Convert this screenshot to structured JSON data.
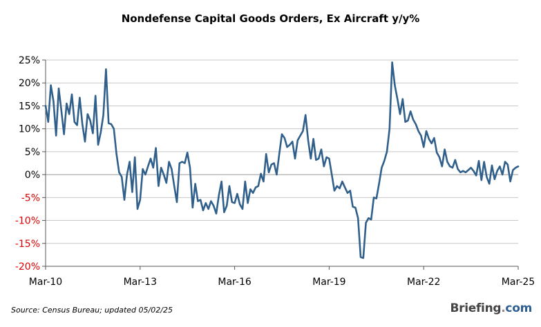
{
  "chart_data": {
    "type": "line",
    "title": "Nondefense Capital Goods Orders, Ex Aircraft y/y%",
    "xlabel": "",
    "ylabel": "",
    "ylim": [
      -20,
      25
    ],
    "yticks": [
      "25%",
      "20%",
      "15%",
      "10%",
      "5%",
      "0%",
      "-5%",
      "-10%",
      "-15%",
      "-20%"
    ],
    "ytick_values": [
      25,
      20,
      15,
      10,
      5,
      0,
      -5,
      -10,
      -15,
      -20
    ],
    "xticks": [
      "Mar-10",
      "Mar-13",
      "Mar-16",
      "Mar-19",
      "Mar-22",
      "Mar-25"
    ],
    "xtick_values": [
      "2010-03",
      "2013-03",
      "2016-03",
      "2019-03",
      "2022-03",
      "2025-03"
    ],
    "xlim": [
      "2010-03",
      "2025-03"
    ],
    "grid": true,
    "colors": {
      "line": "#2f5f8a",
      "negative_tick": "#e00000",
      "positive_tick": "#000000",
      "grid": "#c8c8c8"
    },
    "series": [
      {
        "values": [
          [
            "2010-03",
            15
          ],
          [
            "2010-04",
            11.5
          ],
          [
            "2010-05",
            19.5
          ],
          [
            "2010-06",
            16
          ],
          [
            "2010-07",
            8.5
          ],
          [
            "2010-08",
            18.8
          ],
          [
            "2010-09",
            14
          ],
          [
            "2010-10",
            8.8
          ],
          [
            "2010-11",
            15.5
          ],
          [
            "2010-12",
            13.2
          ],
          [
            "2011-01",
            17.5
          ],
          [
            "2011-02",
            11.5
          ],
          [
            "2011-03",
            10.8
          ],
          [
            "2011-04",
            16.8
          ],
          [
            "2011-05",
            11
          ],
          [
            "2011-06",
            7.2
          ],
          [
            "2011-07",
            13.2
          ],
          [
            "2011-08",
            11.8
          ],
          [
            "2011-09",
            9
          ],
          [
            "2011-10",
            17.2
          ],
          [
            "2011-11",
            6.5
          ],
          [
            "2011-12",
            9.2
          ],
          [
            "2012-01",
            13
          ],
          [
            "2012-02",
            23
          ],
          [
            "2012-03",
            11.2
          ],
          [
            "2012-04",
            11
          ],
          [
            "2012-05",
            10
          ],
          [
            "2012-06",
            4.5
          ],
          [
            "2012-07",
            0.5
          ],
          [
            "2012-08",
            -0.5
          ],
          [
            "2012-09",
            -5.5
          ],
          [
            "2012-10",
            0
          ],
          [
            "2012-11",
            2.8
          ],
          [
            "2012-12",
            -3.8
          ],
          [
            "2013-01",
            3.8
          ],
          [
            "2013-02",
            -7.5
          ],
          [
            "2013-03",
            -5.5
          ],
          [
            "2013-04",
            1.2
          ],
          [
            "2013-05",
            0
          ],
          [
            "2013-06",
            1.8
          ],
          [
            "2013-07",
            3.5
          ],
          [
            "2013-08",
            1.5
          ],
          [
            "2013-09",
            5.8
          ],
          [
            "2013-10",
            -2.5
          ],
          [
            "2013-11",
            1.5
          ],
          [
            "2013-12",
            0
          ],
          [
            "2014-01",
            -1.8
          ],
          [
            "2014-02",
            2.8
          ],
          [
            "2014-03",
            1.2
          ],
          [
            "2014-04",
            -2.5
          ],
          [
            "2014-05",
            -6
          ],
          [
            "2014-06",
            2.5
          ],
          [
            "2014-07",
            2.8
          ],
          [
            "2014-08",
            2.5
          ],
          [
            "2014-09",
            4.8
          ],
          [
            "2014-10",
            1.5
          ],
          [
            "2014-11",
            -7.2
          ],
          [
            "2014-12",
            -2
          ],
          [
            "2015-01",
            -5.8
          ],
          [
            "2015-02",
            -5.5
          ],
          [
            "2015-03",
            -7.8
          ],
          [
            "2015-04",
            -6.2
          ],
          [
            "2015-05",
            -7.5
          ],
          [
            "2015-06",
            -5.8
          ],
          [
            "2015-07",
            -6.8
          ],
          [
            "2015-08",
            -8.5
          ],
          [
            "2015-09",
            -4.5
          ],
          [
            "2015-10",
            -1.5
          ],
          [
            "2015-11",
            -8.2
          ],
          [
            "2015-12",
            -6.8
          ],
          [
            "2016-01",
            -2.5
          ],
          [
            "2016-02",
            -6
          ],
          [
            "2016-03",
            -6.2
          ],
          [
            "2016-04",
            -4.2
          ],
          [
            "2016-05",
            -6.5
          ],
          [
            "2016-06",
            -7.5
          ],
          [
            "2016-07",
            -1.5
          ],
          [
            "2016-08",
            -6.2
          ],
          [
            "2016-09",
            -3.2
          ],
          [
            "2016-10",
            -4
          ],
          [
            "2016-11",
            -2.8
          ],
          [
            "2016-12",
            -2.5
          ],
          [
            "2017-01",
            0.2
          ],
          [
            "2017-02",
            -1.5
          ],
          [
            "2017-03",
            4.5
          ],
          [
            "2017-04",
            0.5
          ],
          [
            "2017-05",
            2.2
          ],
          [
            "2017-06",
            2.5
          ],
          [
            "2017-07",
            0
          ],
          [
            "2017-08",
            4.5
          ],
          [
            "2017-09",
            8.8
          ],
          [
            "2017-10",
            8
          ],
          [
            "2017-11",
            6
          ],
          [
            "2017-12",
            6.5
          ],
          [
            "2018-01",
            7.2
          ],
          [
            "2018-02",
            3.5
          ],
          [
            "2018-03",
            7.5
          ],
          [
            "2018-04",
            8.5
          ],
          [
            "2018-05",
            9.5
          ],
          [
            "2018-06",
            13
          ],
          [
            "2018-07",
            7.5
          ],
          [
            "2018-08",
            3.5
          ],
          [
            "2018-09",
            7.8
          ],
          [
            "2018-10",
            3.2
          ],
          [
            "2018-11",
            3.5
          ],
          [
            "2018-12",
            5.5
          ],
          [
            "2019-01",
            1.8
          ],
          [
            "2019-02",
            3.8
          ],
          [
            "2019-03",
            3.5
          ],
          [
            "2019-04",
            0
          ],
          [
            "2019-05",
            -3.5
          ],
          [
            "2019-06",
            -2.5
          ],
          [
            "2019-07",
            -3
          ],
          [
            "2019-08",
            -1.5
          ],
          [
            "2019-09",
            -2.8
          ],
          [
            "2019-10",
            -4
          ],
          [
            "2019-11",
            -3.5
          ],
          [
            "2019-12",
            -7
          ],
          [
            "2020-01",
            -7.2
          ],
          [
            "2020-02",
            -9.5
          ],
          [
            "2020-03",
            -18
          ],
          [
            "2020-04",
            -18.2
          ],
          [
            "2020-05",
            -10.5
          ],
          [
            "2020-06",
            -9.5
          ],
          [
            "2020-07",
            -9.8
          ],
          [
            "2020-08",
            -5
          ],
          [
            "2020-09",
            -5.2
          ],
          [
            "2020-10",
            -2
          ],
          [
            "2020-11",
            1.5
          ],
          [
            "2020-12",
            3
          ],
          [
            "2021-01",
            5
          ],
          [
            "2021-02",
            10
          ],
          [
            "2021-03",
            24.5
          ],
          [
            "2021-04",
            19.5
          ],
          [
            "2021-05",
            16.5
          ],
          [
            "2021-06",
            13.2
          ],
          [
            "2021-07",
            16.5
          ],
          [
            "2021-08",
            11.5
          ],
          [
            "2021-09",
            11.8
          ],
          [
            "2021-10",
            13.8
          ],
          [
            "2021-11",
            12
          ],
          [
            "2021-12",
            11
          ],
          [
            "2022-01",
            9.5
          ],
          [
            "2022-02",
            8.5
          ],
          [
            "2022-03",
            6
          ],
          [
            "2022-04",
            9.5
          ],
          [
            "2022-05",
            7.8
          ],
          [
            "2022-06",
            6.8
          ],
          [
            "2022-07",
            8
          ],
          [
            "2022-08",
            4.8
          ],
          [
            "2022-09",
            3.8
          ],
          [
            "2022-10",
            1.8
          ],
          [
            "2022-11",
            5.5
          ],
          [
            "2022-12",
            2.8
          ],
          [
            "2023-01",
            1.8
          ],
          [
            "2023-02",
            1.5
          ],
          [
            "2023-03",
            3.2
          ],
          [
            "2023-04",
            1.2
          ],
          [
            "2023-05",
            0.5
          ],
          [
            "2023-06",
            0.8
          ],
          [
            "2023-07",
            0.5
          ],
          [
            "2023-08",
            1
          ],
          [
            "2023-09",
            1.5
          ],
          [
            "2023-10",
            0.8
          ],
          [
            "2023-11",
            -0.2
          ],
          [
            "2023-12",
            3
          ],
          [
            "2024-01",
            -1.2
          ],
          [
            "2024-02",
            2.8
          ],
          [
            "2024-03",
            -0.5
          ],
          [
            "2024-04",
            -2
          ],
          [
            "2024-05",
            2
          ],
          [
            "2024-06",
            -1
          ],
          [
            "2024-07",
            0.8
          ],
          [
            "2024-08",
            1.8
          ],
          [
            "2024-09",
            0
          ],
          [
            "2024-10",
            2.8
          ],
          [
            "2024-11",
            2.2
          ],
          [
            "2024-12",
            -1.5
          ],
          [
            "2025-01",
            1
          ],
          [
            "2025-02",
            1.5
          ],
          [
            "2025-03",
            1.8
          ]
        ]
      }
    ]
  },
  "footer": {
    "source": "Source:  Census Bureau;  updated  05/02/25",
    "logo_main": "Briefing",
    "logo_dot": ".",
    "logo_com": "com"
  }
}
